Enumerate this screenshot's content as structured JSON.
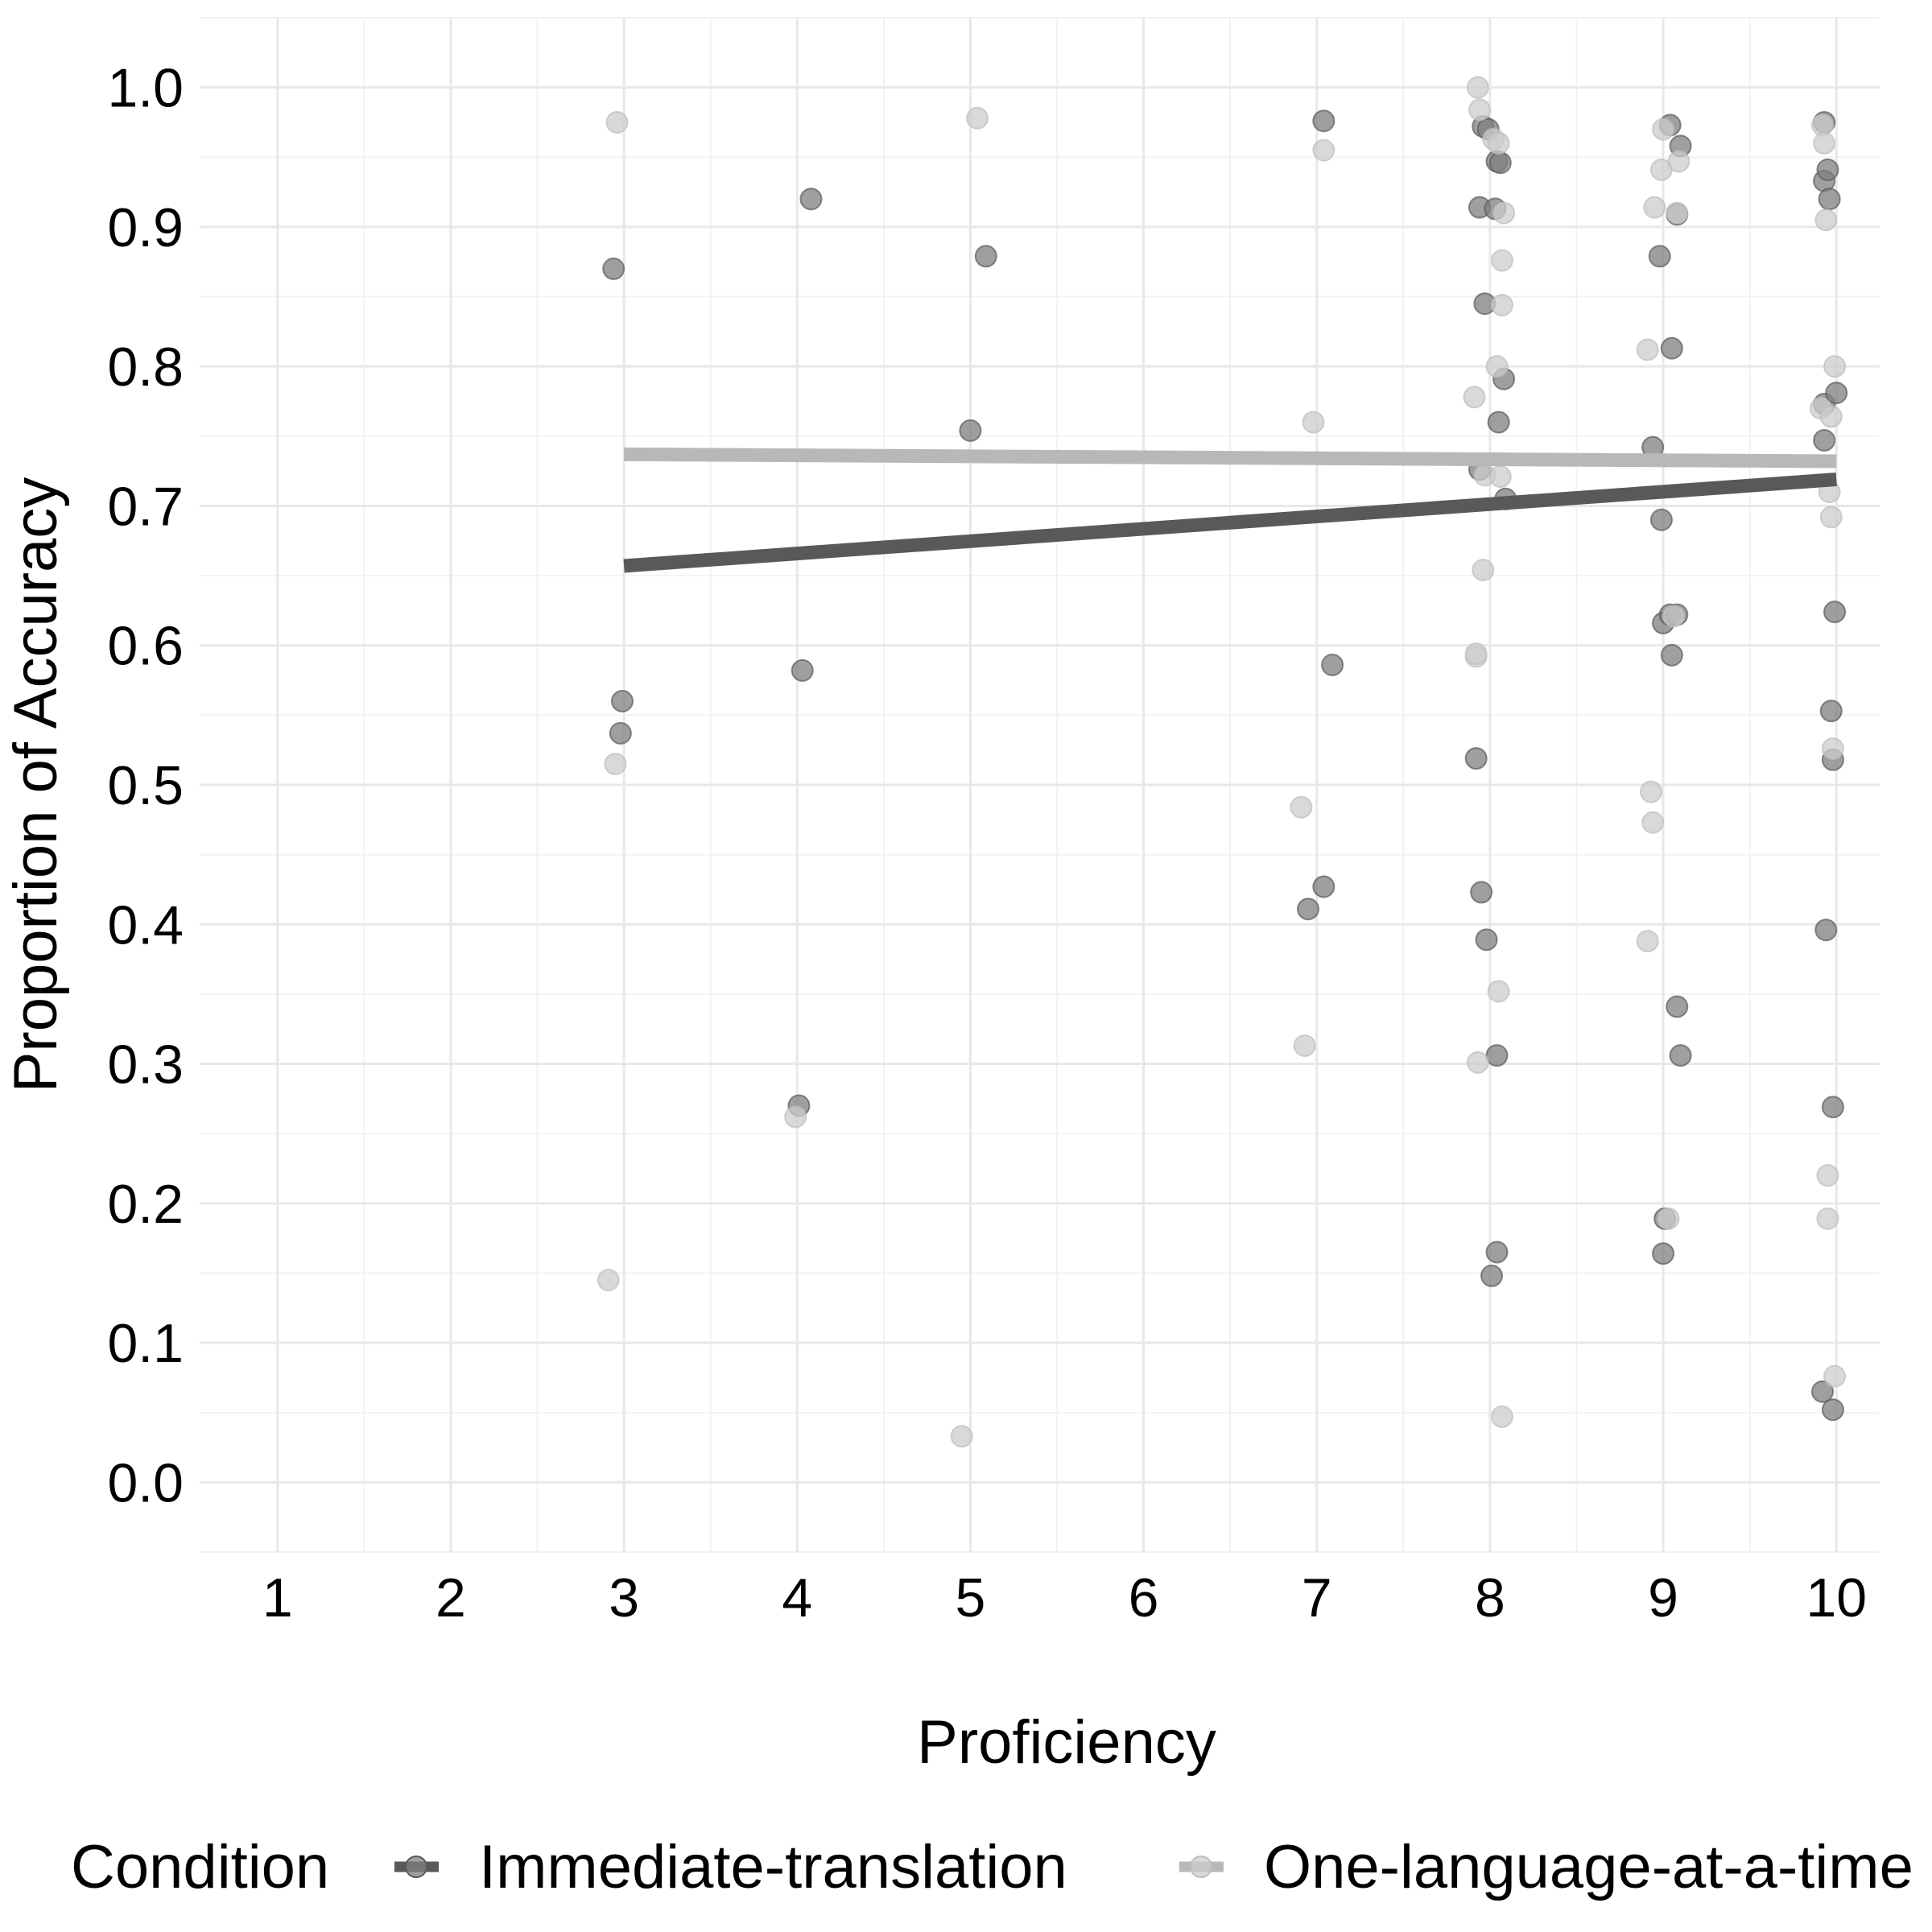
{
  "chart_data": {
    "type": "scatter",
    "title": "",
    "xlabel": "Proficiency",
    "ylabel": "Proportion of Accuracy",
    "xlim": [
      0.55,
      10.25
    ],
    "ylim": [
      -0.05,
      1.05
    ],
    "x_ticks": [
      1,
      2,
      3,
      4,
      5,
      6,
      7,
      8,
      9,
      10
    ],
    "x_tick_labels": [
      "1",
      "2",
      "3",
      "4",
      "5",
      "6",
      "7",
      "8",
      "9",
      "10"
    ],
    "y_ticks": [
      0.0,
      0.1,
      0.2,
      0.3,
      0.4,
      0.5,
      0.6,
      0.7,
      0.8,
      0.9,
      1.0
    ],
    "y_tick_labels": [
      "0.0",
      "0.1",
      "0.2",
      "0.3",
      "0.4",
      "0.5",
      "0.6",
      "0.7",
      "0.8",
      "0.9",
      "1.0"
    ],
    "grid": true,
    "legend": {
      "title": "Condition",
      "position": "bottom"
    },
    "series": [
      {
        "name": "Immediate-translation",
        "color": "#595959",
        "point_color": "#7f7f7f",
        "trend": [
          [
            3,
            0.657
          ],
          [
            10,
            0.719
          ]
        ],
        "points": [
          [
            2.94,
            0.87
          ],
          [
            2.98,
            0.537
          ],
          [
            2.99,
            0.56
          ],
          [
            4.01,
            0.27
          ],
          [
            4.03,
            0.582
          ],
          [
            4.08,
            0.92
          ],
          [
            5.0,
            0.754
          ],
          [
            5.09,
            0.879
          ],
          [
            6.95,
            0.411
          ],
          [
            7.04,
            0.976
          ],
          [
            7.04,
            0.427
          ],
          [
            7.09,
            0.586
          ],
          [
            7.92,
            0.519
          ],
          [
            7.94,
            0.726
          ],
          [
            7.94,
            0.914
          ],
          [
            7.95,
            0.423
          ],
          [
            7.96,
            0.972
          ],
          [
            7.97,
            0.845
          ],
          [
            7.98,
            0.389
          ],
          [
            7.99,
            0.97
          ],
          [
            8.01,
            0.148
          ],
          [
            8.03,
            0.913
          ],
          [
            8.04,
            0.947
          ],
          [
            8.04,
            0.306
          ],
          [
            8.04,
            0.165
          ],
          [
            8.05,
            0.76
          ],
          [
            8.06,
            0.946
          ],
          [
            8.08,
            0.791
          ],
          [
            8.09,
            0.705
          ],
          [
            8.94,
            0.742
          ],
          [
            8.98,
            0.879
          ],
          [
            8.99,
            0.69
          ],
          [
            9.0,
            0.616
          ],
          [
            9.0,
            0.164
          ],
          [
            9.01,
            0.189
          ],
          [
            9.04,
            0.622
          ],
          [
            9.04,
            0.973
          ],
          [
            9.05,
            0.813
          ],
          [
            9.05,
            0.593
          ],
          [
            9.08,
            0.341
          ],
          [
            9.08,
            0.909
          ],
          [
            9.08,
            0.622
          ],
          [
            9.1,
            0.306
          ],
          [
            9.1,
            0.958
          ],
          [
            9.92,
            0.065
          ],
          [
            9.93,
            0.773
          ],
          [
            9.93,
            0.747
          ],
          [
            9.93,
            0.975
          ],
          [
            9.93,
            0.933
          ],
          [
            9.94,
            0.396
          ],
          [
            9.95,
            0.941
          ],
          [
            9.96,
            0.92
          ],
          [
            9.97,
            0.553
          ],
          [
            9.98,
            0.269
          ],
          [
            9.98,
            0.518
          ],
          [
            9.98,
            0.052
          ],
          [
            9.99,
            0.624
          ],
          [
            10.0,
            0.781
          ]
        ]
      },
      {
        "name": "One-language-at-a-time",
        "color": "#b8b8b8",
        "point_color": "#cccccc",
        "trend": [
          [
            3,
            0.737
          ],
          [
            10,
            0.732
          ]
        ],
        "points": [
          [
            2.91,
            0.145
          ],
          [
            2.95,
            0.515
          ],
          [
            2.96,
            0.975
          ],
          [
            3.99,
            0.262
          ],
          [
            4.95,
            0.033
          ],
          [
            5.04,
            0.978
          ],
          [
            6.91,
            0.484
          ],
          [
            6.93,
            0.313
          ],
          [
            6.98,
            0.76
          ],
          [
            7.04,
            0.955
          ],
          [
            7.91,
            0.778
          ],
          [
            7.92,
            0.592
          ],
          [
            7.92,
            0.594
          ],
          [
            7.93,
            0.301
          ],
          [
            7.93,
            1.0
          ],
          [
            7.94,
            0.984
          ],
          [
            7.96,
            0.654
          ],
          [
            7.97,
            0.722
          ],
          [
            8.02,
            0.963
          ],
          [
            8.04,
            0.8
          ],
          [
            8.05,
            0.96
          ],
          [
            8.05,
            0.352
          ],
          [
            8.06,
            0.721
          ],
          [
            8.07,
            0.047
          ],
          [
            8.07,
            0.876
          ],
          [
            8.07,
            0.844
          ],
          [
            8.08,
            0.91
          ],
          [
            8.91,
            0.388
          ],
          [
            8.91,
            0.812
          ],
          [
            8.93,
            0.495
          ],
          [
            8.94,
            0.473
          ],
          [
            8.95,
            0.914
          ],
          [
            8.99,
            0.941
          ],
          [
            9.0,
            0.97
          ],
          [
            9.03,
            0.189
          ],
          [
            9.06,
            0.621
          ],
          [
            9.08,
            0.91
          ],
          [
            9.09,
            0.947
          ],
          [
            9.91,
            0.77
          ],
          [
            9.92,
            0.973
          ],
          [
            9.93,
            0.96
          ],
          [
            9.94,
            0.905
          ],
          [
            9.95,
            0.22
          ],
          [
            9.95,
            0.189
          ],
          [
            9.96,
            0.71
          ],
          [
            9.97,
            0.692
          ],
          [
            9.97,
            0.764
          ],
          [
            9.98,
            0.526
          ],
          [
            9.99,
            0.8
          ],
          [
            9.99,
            0.076
          ]
        ]
      }
    ]
  }
}
